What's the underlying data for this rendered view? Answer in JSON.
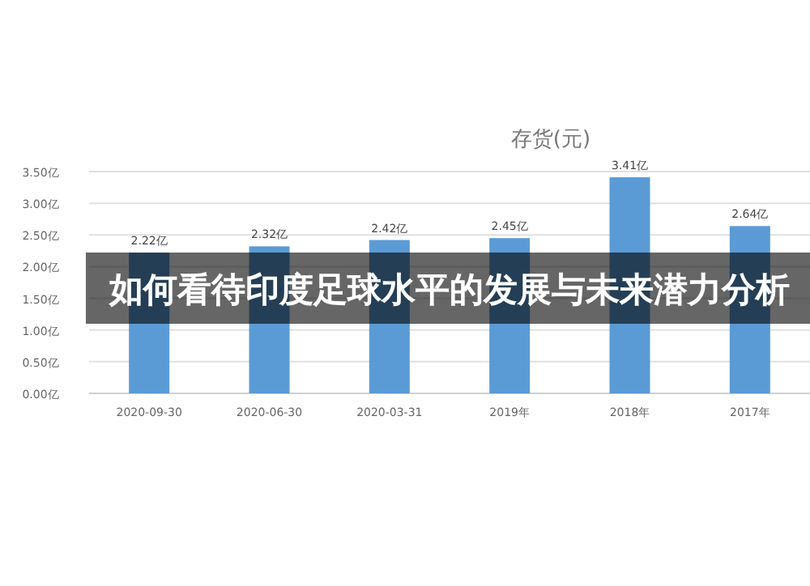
{
  "chart_data": {
    "type": "bar",
    "title": "存货(元)",
    "categories": [
      "2020-09-30",
      "2020-06-30",
      "2020-03-31",
      "2019年",
      "2018年",
      "2017年"
    ],
    "values": [
      2.22,
      2.32,
      2.42,
      2.45,
      3.41,
      2.64
    ],
    "value_labels": [
      "2.22亿",
      "2.32亿",
      "2.42亿",
      "2.45亿",
      "3.41亿",
      "2.64亿"
    ],
    "color": "#5b9bd5",
    "ylim": [
      0,
      3.5
    ],
    "yticks": [
      {
        "value": 0,
        "label": "0.00亿"
      },
      {
        "value": 0.5,
        "label": "0.50亿"
      },
      {
        "value": 1,
        "label": "1.00亿"
      },
      {
        "value": 1.5,
        "label": "1.50亿"
      },
      {
        "value": 2,
        "label": "2.00亿"
      },
      {
        "value": 2.5,
        "label": "2.50亿"
      },
      {
        "value": 3,
        "label": "3.00亿"
      },
      {
        "value": 3.5,
        "label": "3.50亿"
      }
    ],
    "grid": "y",
    "annotations": [
      "如何看待印度足球水平的发展与未来潜力分析"
    ]
  }
}
